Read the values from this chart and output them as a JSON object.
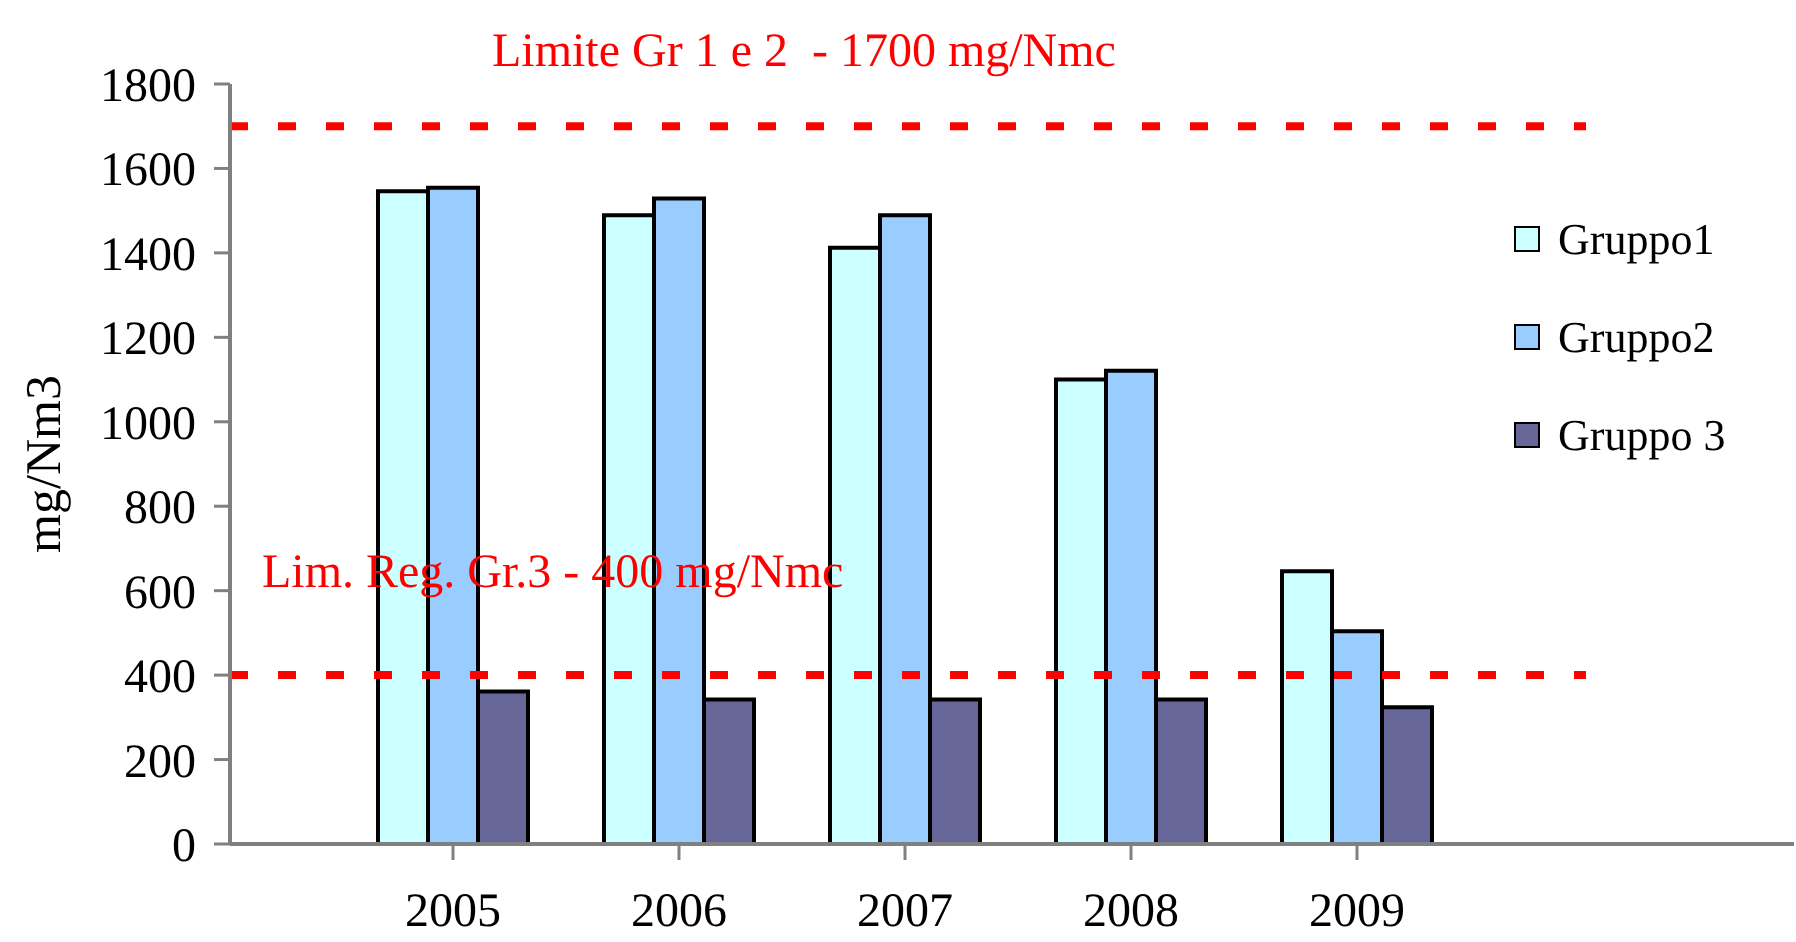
{
  "chart_data": {
    "type": "bar",
    "categories": [
      "2005",
      "2006",
      "2007",
      "2008",
      "2009"
    ],
    "series": [
      {
        "name": "Gruppo1",
        "color": "#ccffff",
        "values": [
          1546,
          1489,
          1412,
          1100,
          646
        ]
      },
      {
        "name": "Gruppo2",
        "color": "#99ccff",
        "values": [
          1554,
          1529,
          1489,
          1121,
          504
        ]
      },
      {
        "name": "Gruppo 3",
        "color": "#666699",
        "values": [
          361,
          342,
          342,
          342,
          324
        ]
      }
    ],
    "ylabel": "mg/Nm3",
    "ylim": [
      0,
      1800
    ],
    "yticks": [
      0,
      200,
      400,
      600,
      800,
      1000,
      1200,
      1400,
      1600,
      1800
    ],
    "grid": false,
    "legend": "right",
    "ref_lines": [
      {
        "axis": "y",
        "value": 1700,
        "label": "Limite Gr 1 e 2  - 1700 mg/Nmc",
        "color": "#ff0000",
        "line_style": "dashed"
      },
      {
        "axis": "y",
        "value": 400,
        "label": "Lim. Reg. Gr.3 - 400 mg/Nmc",
        "color": "#ff0000",
        "line_style": "dashed"
      }
    ]
  }
}
